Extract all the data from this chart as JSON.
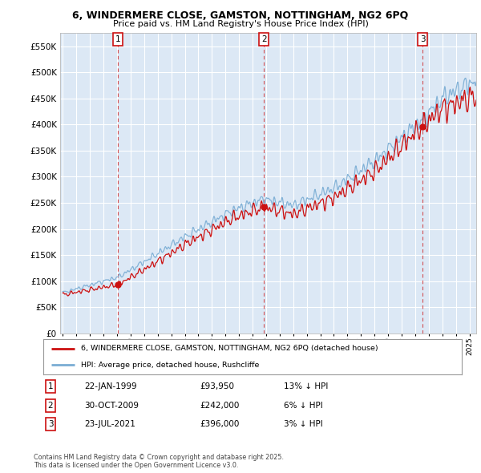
{
  "title": "6, WINDERMERE CLOSE, GAMSTON, NOTTINGHAM, NG2 6PQ",
  "subtitle": "Price paid vs. HM Land Registry's House Price Index (HPI)",
  "bg_color": "#ffffff",
  "plot_bg_color": "#dce8f5",
  "grid_color": "#ffffff",
  "hpi_color": "#7aadd4",
  "price_color": "#cc1111",
  "vline_color": "#cc1111",
  "ylim": [
    0,
    575000
  ],
  "yticks": [
    0,
    50000,
    100000,
    150000,
    200000,
    250000,
    300000,
    350000,
    400000,
    450000,
    500000,
    550000
  ],
  "xlim_start": 1994.8,
  "xlim_end": 2025.5,
  "sales": [
    {
      "year": 1999.055,
      "price": 93950,
      "label": "1"
    },
    {
      "year": 2009.831,
      "price": 242000,
      "label": "2"
    },
    {
      "year": 2021.553,
      "price": 396000,
      "label": "3"
    }
  ],
  "legend_entries": [
    "6, WINDERMERE CLOSE, GAMSTON, NOTTINGHAM, NG2 6PQ (detached house)",
    "HPI: Average price, detached house, Rushcliffe"
  ],
  "table_entries": [
    {
      "num": "1",
      "date": "22-JAN-1999",
      "price": "£93,950",
      "hpi": "13% ↓ HPI"
    },
    {
      "num": "2",
      "date": "30-OCT-2009",
      "price": "£242,000",
      "hpi": "6% ↓ HPI"
    },
    {
      "num": "3",
      "date": "23-JUL-2021",
      "price": "£396,000",
      "hpi": "3% ↓ HPI"
    }
  ],
  "footnote": "Contains HM Land Registry data © Crown copyright and database right 2025.\nThis data is licensed under the Open Government Licence v3.0."
}
